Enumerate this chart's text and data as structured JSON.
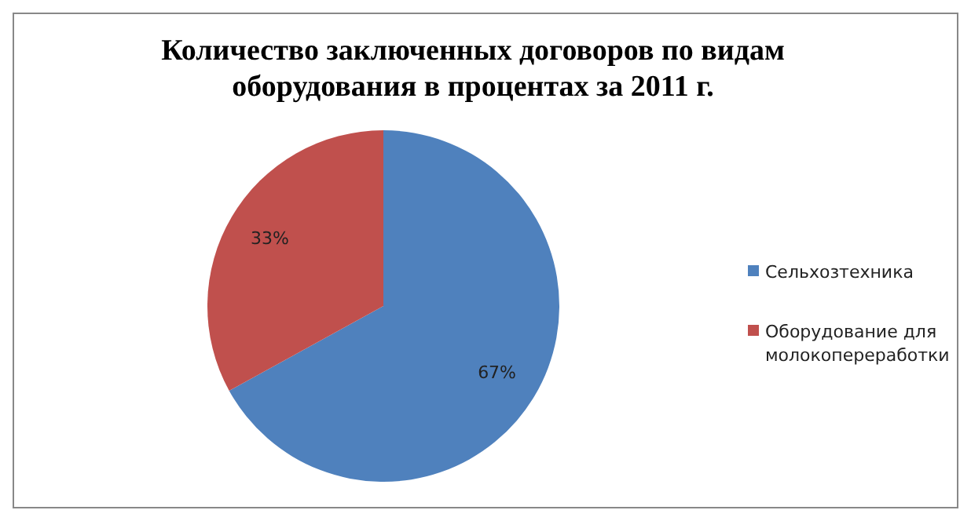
{
  "chart_data": {
    "type": "pie",
    "title": "Количество заключенных договоров по видам оборудования в процентах за 2011 г.",
    "categories": [
      "Сельхозтехника",
      "Оборудование для молокопереработки"
    ],
    "values": [
      67,
      33
    ],
    "colors": [
      "#4f81bd",
      "#c0504d"
    ],
    "value_labels": [
      "67%",
      "33%"
    ],
    "legend": "right"
  }
}
